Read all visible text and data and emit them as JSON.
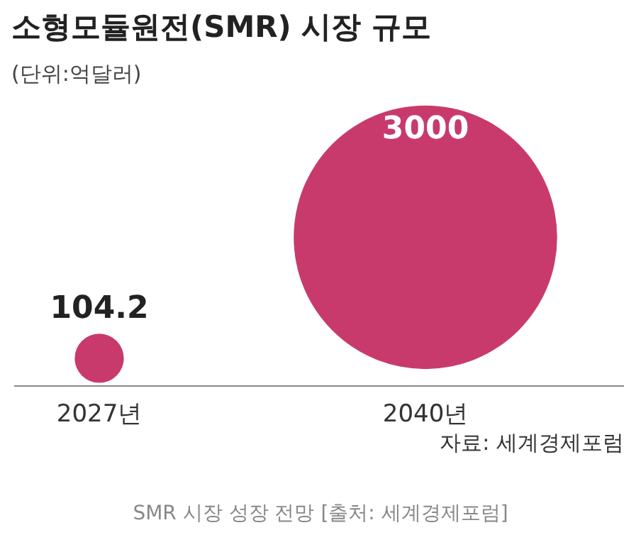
{
  "chart_data": {
    "type": "other",
    "title": "소형모듈원전(SMR) 시장 규모",
    "subtitle": "(단위:억달러)",
    "categories": [
      "2027년",
      "2040년"
    ],
    "values": [
      104.2,
      3000
    ],
    "color": "#c93a6c",
    "data_labels": true,
    "annotations": [
      "자료: 세계경제포럼",
      "SMR 시장 성장 전망 [출처: 세계경제포럼]"
    ]
  }
}
